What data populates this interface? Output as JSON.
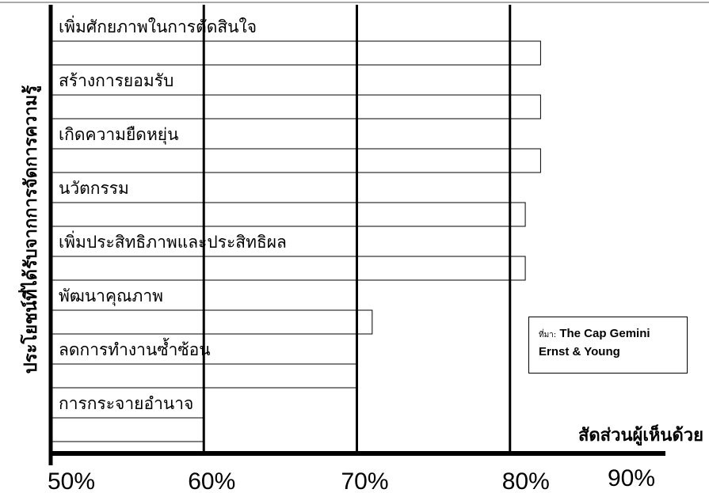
{
  "chart_data": {
    "type": "bar",
    "orientation": "horizontal",
    "title": "",
    "xlabel": "สัดส่วนผู้เห็นด้วย",
    "ylabel": "ประโยชน์ที่ได้รับจากการจัดการความรู้",
    "xlim": [
      50,
      90
    ],
    "xticks": [
      "50%",
      "60%",
      "70%",
      "80%",
      "90%"
    ],
    "categories": [
      "เพิ่มศักยภาพในการตัดสินใจ",
      "สร้างการยอมรับ",
      "เกิดความยืดหยุ่น",
      "นวัตกรรม",
      "เพิ่มประสิทธิภาพและประสิทธิผล",
      "พัฒนาคุณภาพ",
      "ลดการทำงานซ้ำซ้อน",
      "การกระจายอำนาจ"
    ],
    "values": [
      82,
      82,
      82,
      81,
      81,
      71,
      70,
      60
    ],
    "grid": true,
    "legend": "none"
  },
  "source_box": {
    "prefix": "ที่มา:",
    "line1": "The Cap Gemini",
    "line2": "Ernst & Young"
  }
}
